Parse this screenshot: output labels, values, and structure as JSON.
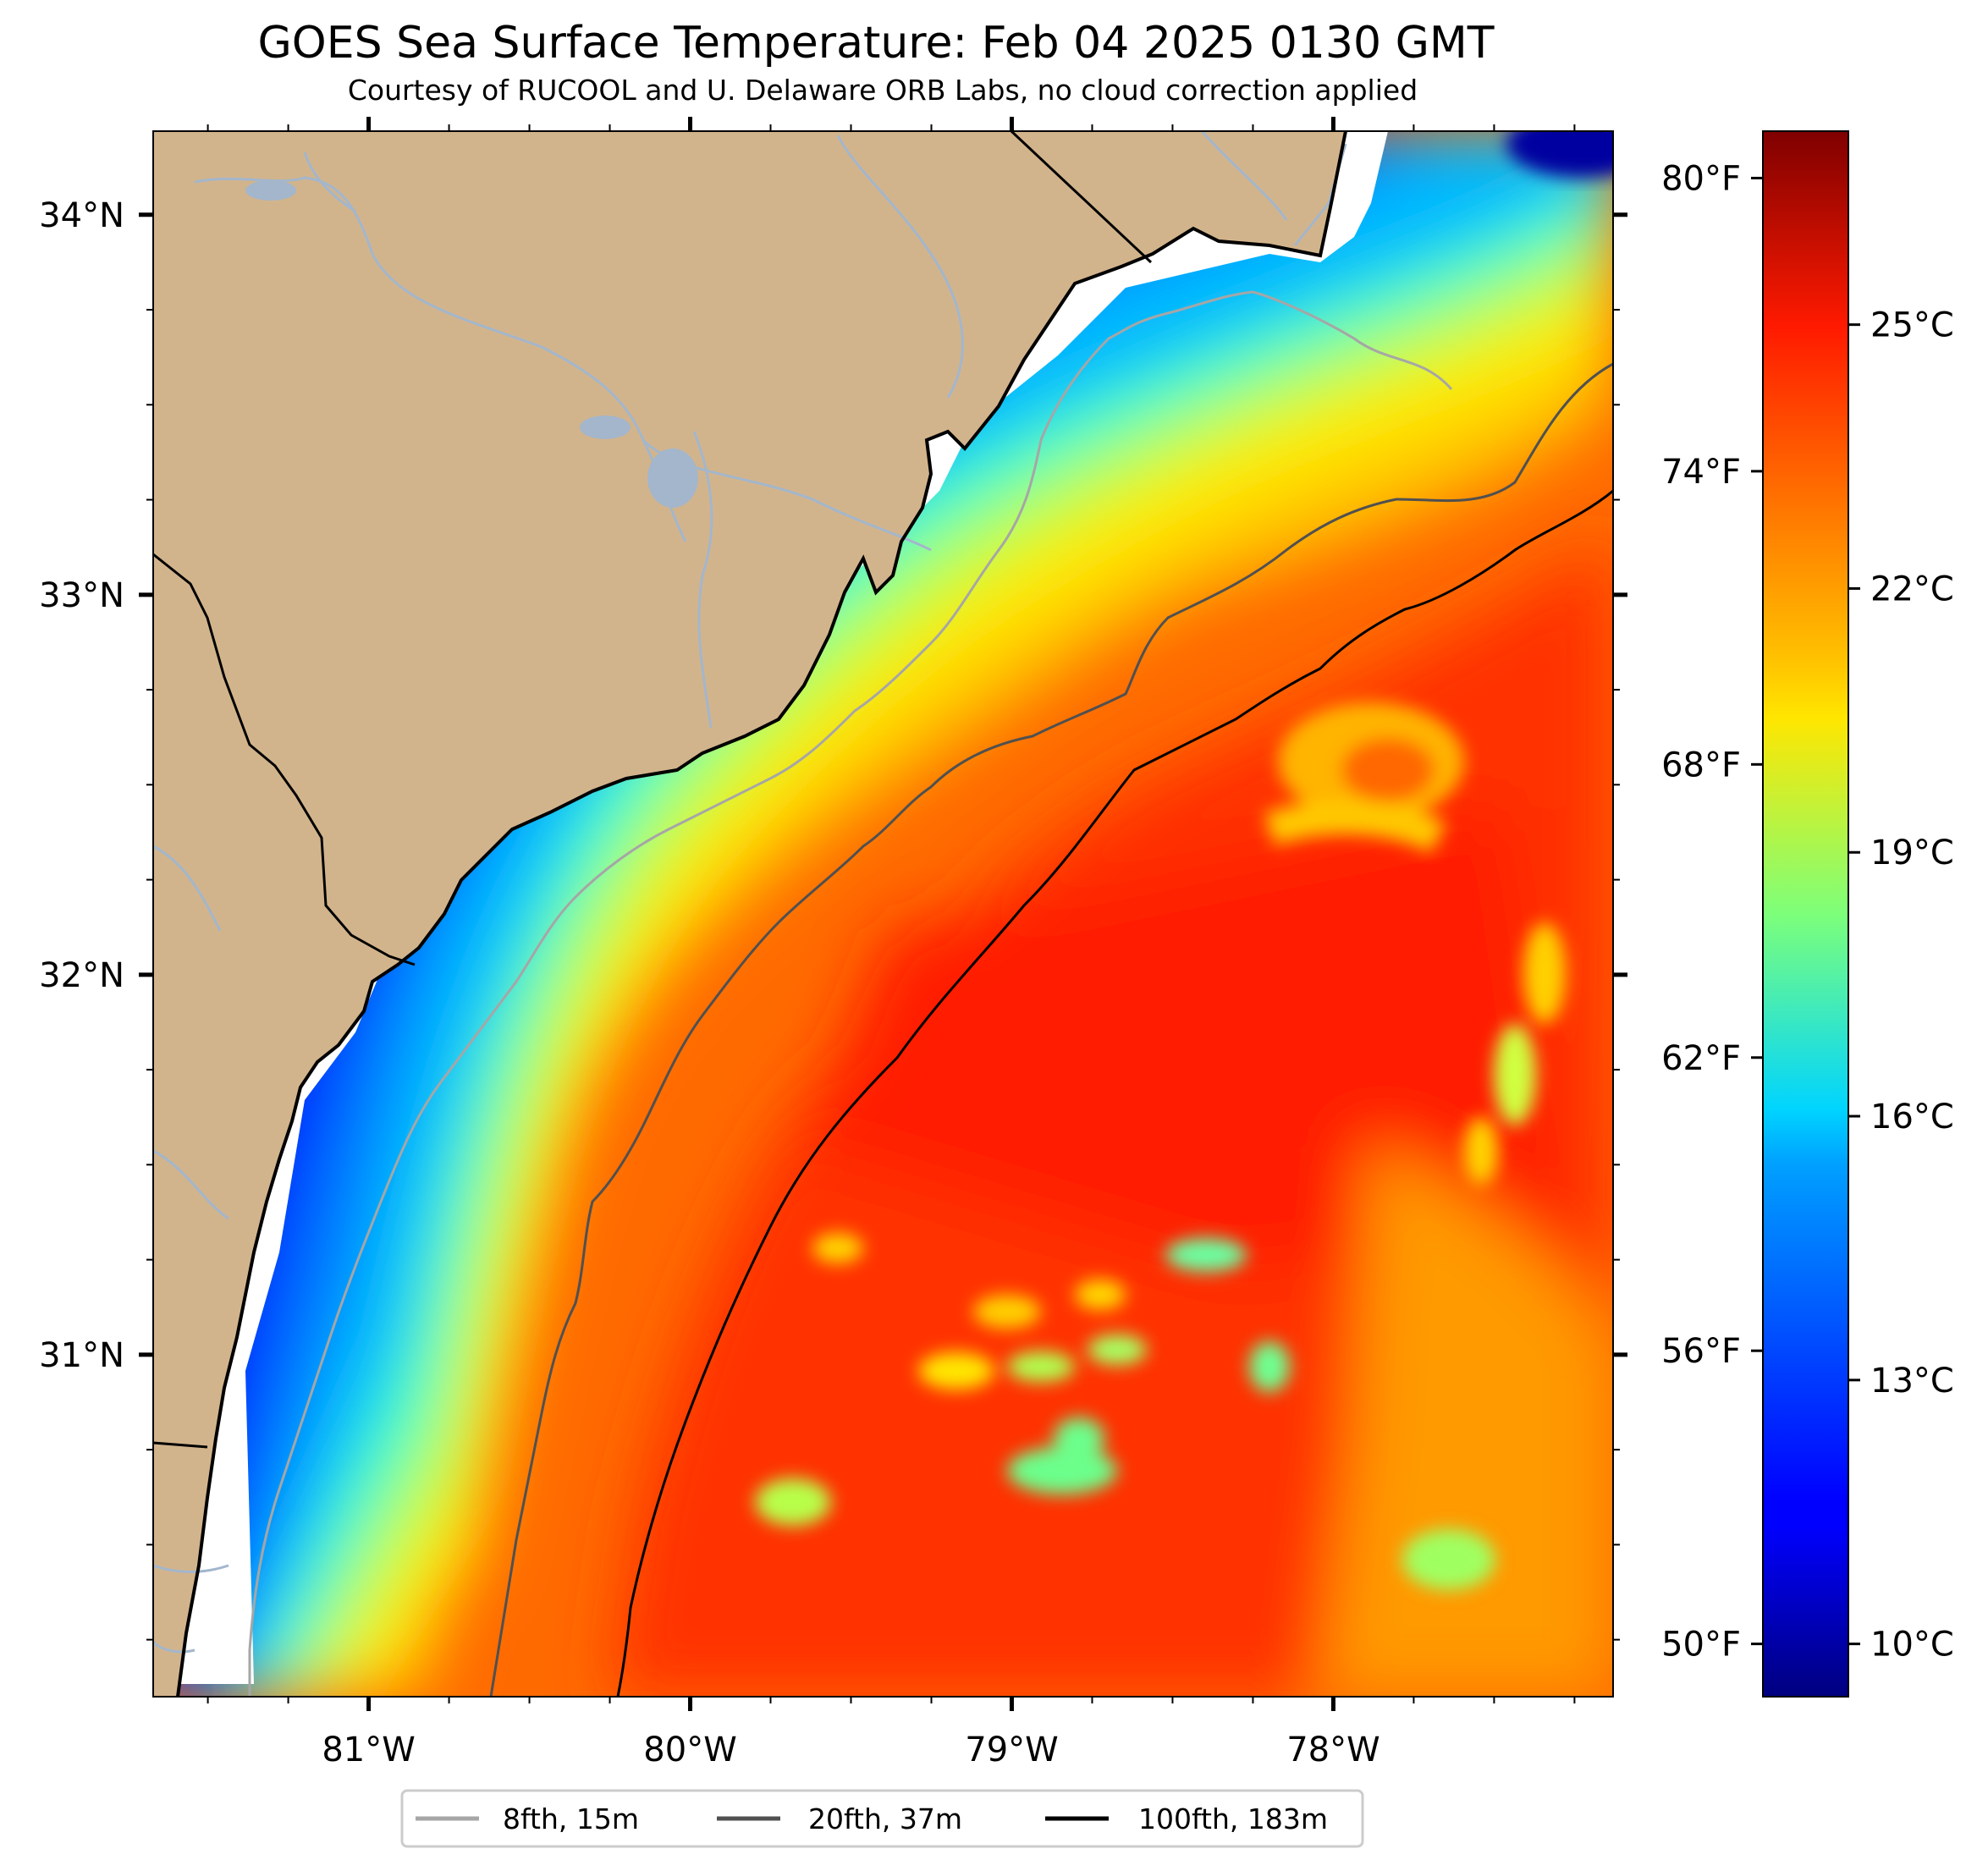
{
  "title": "GOES Sea Surface Temperature: Feb 04 2025 0130 GMT",
  "subtitle": "Courtesy of RUCOOL and U. Delaware ORB Labs, no cloud correction applied",
  "map": {
    "lon_range": [
      -81.67,
      -77.13
    ],
    "lat_range": [
      30.1,
      34.22
    ],
    "lat_ticks": [
      {
        "value": 34,
        "label": "34°N"
      },
      {
        "value": 33,
        "label": "33°N"
      },
      {
        "value": 32,
        "label": "32°N"
      },
      {
        "value": 31,
        "label": "31°N"
      }
    ],
    "lon_ticks": [
      {
        "value": -81,
        "label": "81°W"
      },
      {
        "value": -80,
        "label": "80°W"
      },
      {
        "value": -79,
        "label": "79°W"
      },
      {
        "value": -78,
        "label": "78°W"
      }
    ],
    "land_color": "#d2b48c",
    "river_color": "#a3b6cc"
  },
  "colorbar": {
    "cmap": "jet",
    "range_c": [
      9.4,
      27.2
    ],
    "celsius_ticks": [
      {
        "value": 10,
        "label": "10°C"
      },
      {
        "value": 13,
        "label": "13°C"
      },
      {
        "value": 16,
        "label": "16°C"
      },
      {
        "value": 19,
        "label": "19°C"
      },
      {
        "value": 22,
        "label": "22°C"
      },
      {
        "value": 25,
        "label": "25°C"
      }
    ],
    "fahrenheit_ticks": [
      {
        "value": 50,
        "label": "50°F"
      },
      {
        "value": 56,
        "label": "56°F"
      },
      {
        "value": 62,
        "label": "62°F"
      },
      {
        "value": 68,
        "label": "68°F"
      },
      {
        "value": 74,
        "label": "74°F"
      },
      {
        "value": 80,
        "label": "80°F"
      }
    ]
  },
  "legend": [
    {
      "label": "8fth, 15m",
      "color": "#a6a6a6"
    },
    {
      "label": "20fth, 37m",
      "color": "#505050"
    },
    {
      "label": "100fth, 183m",
      "color": "#000000"
    }
  ]
}
